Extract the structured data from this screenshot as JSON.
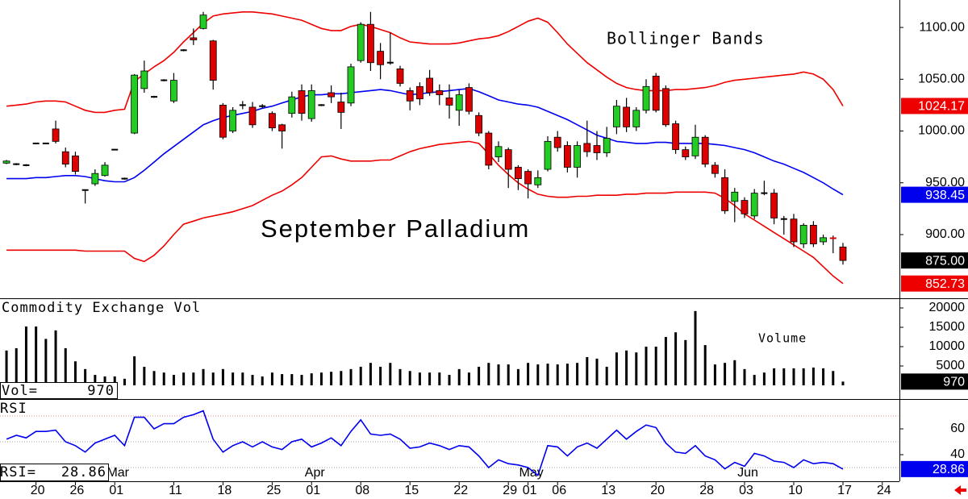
{
  "chart_data": [
    {
      "type": "candlestick",
      "title": "September Palladium",
      "annotation": "Bollinger Bands",
      "xlim": [
        -0.66,
        90.74
      ],
      "ylim": [
        838.5,
        1126.5
      ],
      "yticks": [
        {
          "value": 1100,
          "label": "1100.00"
        },
        {
          "value": 1050,
          "label": "1050.00"
        },
        {
          "value": 1000,
          "label": "1000.00"
        },
        {
          "value": 950,
          "label": "950.00"
        },
        {
          "value": 900,
          "label": "900.00"
        }
      ],
      "xticks": [
        {
          "value": 3,
          "label": "20"
        },
        {
          "value": 7,
          "label": "26"
        },
        {
          "value": 11,
          "label": "01"
        },
        {
          "value": 17,
          "label": "11"
        },
        {
          "value": 22,
          "label": "18"
        },
        {
          "value": 27,
          "label": "25"
        },
        {
          "value": 31,
          "label": "01"
        },
        {
          "value": 36,
          "label": "08"
        },
        {
          "value": 41,
          "label": "15"
        },
        {
          "value": 46,
          "label": "22"
        },
        {
          "value": 51,
          "label": "29"
        },
        {
          "value": 53,
          "label": "01"
        },
        {
          "value": 56,
          "label": "06"
        },
        {
          "value": 61,
          "label": "13"
        },
        {
          "value": 66,
          "label": "20"
        },
        {
          "value": 71,
          "label": "28"
        },
        {
          "value": 75,
          "label": "03"
        },
        {
          "value": 80,
          "label": "10"
        },
        {
          "value": 85,
          "label": "17"
        },
        {
          "value": 89,
          "label": "24"
        }
      ],
      "month_ticks": [
        {
          "value": 11,
          "label": "Mar"
        },
        {
          "value": 31,
          "label": "Apr"
        },
        {
          "value": 53,
          "label": "May"
        },
        {
          "value": 75,
          "label": "Jun"
        }
      ],
      "up_color": "#22cc22",
      "down_color": "#dd0000",
      "close_label": "875.00",
      "ohlc": [
        [
          969,
          972,
          968,
          971
        ],
        [
          968,
          969,
          967,
          968
        ],
        [
          967,
          968,
          966,
          967
        ],
        [
          988,
          988,
          988,
          988
        ],
        [
          988,
          988,
          988,
          988
        ],
        [
          1002,
          1010,
          988,
          990
        ],
        [
          980,
          984,
          965,
          968
        ],
        [
          976,
          980,
          958,
          961
        ],
        [
          943,
          943,
          930,
          943
        ],
        [
          949,
          963,
          947,
          959
        ],
        [
          957,
          970,
          956,
          967
        ],
        [
          982,
          982,
          982,
          982
        ],
        [
          954,
          955,
          953,
          954
        ],
        [
          998,
          1055,
          997,
          1054
        ],
        [
          1041,
          1068,
          1037,
          1058
        ],
        [
          1033,
          1034,
          1032,
          1033
        ],
        [
          1049,
          1050,
          1048,
          1049
        ],
        [
          1029,
          1056,
          1027,
          1049
        ],
        [
          1078,
          1079,
          1077,
          1078
        ],
        [
          1090,
          1099,
          1083,
          1088
        ],
        [
          1099,
          1115,
          1098,
          1112
        ],
        [
          1087,
          1088,
          1040,
          1049
        ],
        [
          1025,
          1027,
          992,
          994
        ],
        [
          1000,
          1023,
          998,
          1020
        ],
        [
          1025,
          1029,
          1021,
          1025
        ],
        [
          1023,
          1028,
          1003,
          1006
        ],
        [
          1024,
          1026,
          1022,
          1024
        ],
        [
          1017,
          1019,
          1000,
          1003
        ],
        [
          1006,
          1007,
          983,
          1000
        ],
        [
          1017,
          1038,
          1013,
          1033
        ],
        [
          1039,
          1045,
          1010,
          1017
        ],
        [
          1012,
          1045,
          1009,
          1039
        ],
        [
          1025,
          1026,
          1024,
          1025
        ],
        [
          1037,
          1044,
          1027,
          1033
        ],
        [
          1028,
          1037,
          1002,
          1018
        ],
        [
          1027,
          1065,
          1024,
          1062
        ],
        [
          1068,
          1105,
          1066,
          1103
        ],
        [
          1103,
          1115,
          1058,
          1066
        ],
        [
          1077,
          1085,
          1050,
          1064
        ],
        [
          1066,
          1095,
          1064,
          1066
        ],
        [
          1060,
          1063,
          1043,
          1046
        ],
        [
          1039,
          1042,
          1020,
          1029
        ],
        [
          1043,
          1047,
          1025,
          1031
        ],
        [
          1051,
          1059,
          1034,
          1037
        ],
        [
          1039,
          1045,
          1025,
          1035
        ],
        [
          1032,
          1045,
          1012,
          1025
        ],
        [
          1020,
          1040,
          1005,
          1035
        ],
        [
          1042,
          1046,
          1016,
          1019
        ],
        [
          1015,
          1018,
          995,
          998
        ],
        [
          998,
          1000,
          963,
          967
        ],
        [
          975,
          990,
          970,
          985
        ],
        [
          982,
          984,
          945,
          963
        ],
        [
          965,
          967,
          943,
          954
        ],
        [
          961,
          963,
          935,
          949
        ],
        [
          948,
          962,
          945,
          955
        ],
        [
          963,
          995,
          961,
          990
        ],
        [
          994,
          1000,
          980,
          984
        ],
        [
          986,
          990,
          960,
          965
        ],
        [
          965,
          990,
          955,
          986
        ],
        [
          988,
          1010,
          975,
          980
        ],
        [
          986,
          1000,
          972,
          979
        ],
        [
          979,
          1004,
          975,
          993
        ],
        [
          1004,
          1030,
          997,
          1024
        ],
        [
          1023,
          1032,
          999,
          1004
        ],
        [
          1004,
          1023,
          1000,
          1020
        ],
        [
          1020,
          1050,
          1017,
          1043
        ],
        [
          1053,
          1056,
          1018,
          1020
        ],
        [
          1041,
          1044,
          1004,
          1006
        ],
        [
          1007,
          1010,
          978,
          982
        ],
        [
          982,
          985,
          972,
          975
        ],
        [
          976,
          1006,
          973,
          994
        ],
        [
          994,
          996,
          965,
          968
        ],
        [
          967,
          970,
          955,
          959
        ],
        [
          955,
          963,
          920,
          923
        ],
        [
          932,
          945,
          912,
          941
        ],
        [
          933,
          936,
          916,
          920
        ],
        [
          918,
          944,
          915,
          940
        ],
        [
          940,
          952,
          938,
          940
        ],
        [
          940,
          944,
          910,
          916
        ],
        [
          915,
          918,
          900,
          915
        ],
        [
          915,
          920,
          888,
          893
        ],
        [
          891,
          911,
          887,
          909
        ],
        [
          909,
          913,
          888,
          891
        ],
        [
          893,
          900,
          890,
          897
        ],
        [
          897,
          899,
          882,
          896
        ],
        [
          888,
          892,
          871,
          875
        ]
      ],
      "bands": [
        {
          "color": "#ee0000",
          "values": [
            1024,
            1025,
            1026,
            1028,
            1029,
            1029,
            1028,
            1024,
            1020,
            1018,
            1018,
            1020,
            1021,
            1048,
            1055,
            1062,
            1068,
            1076,
            1086,
            1095,
            1104,
            1111,
            1113,
            1114,
            1115,
            1115,
            1114,
            1113,
            1111,
            1109,
            1107,
            1103,
            1099,
            1097,
            1097,
            1101,
            1103,
            1101,
            1098,
            1095,
            1090,
            1086,
            1085,
            1084,
            1084,
            1084,
            1085,
            1087,
            1089,
            1090,
            1092,
            1096,
            1101,
            1106,
            1109,
            1105,
            1095,
            1084,
            1075,
            1066,
            1059,
            1052,
            1046,
            1042,
            1040,
            1039,
            1039,
            1039,
            1040,
            1040,
            1041,
            1042,
            1044,
            1047,
            1049,
            1050,
            1051,
            1052,
            1053,
            1054,
            1055,
            1057,
            1055,
            1050,
            1040,
            1024.17
          ]
        },
        {
          "color": "#0000ee",
          "values": [
            954,
            954,
            954,
            955,
            955,
            956,
            957,
            957,
            956,
            954,
            952,
            951,
            951,
            955,
            962,
            970,
            978,
            985,
            992,
            999,
            1006,
            1010,
            1013,
            1015,
            1017,
            1019,
            1022,
            1024,
            1027,
            1030,
            1033,
            1035,
            1035,
            1036,
            1036,
            1037,
            1038,
            1039,
            1040,
            1039,
            1037,
            1035,
            1036,
            1037,
            1038,
            1039,
            1040,
            1041,
            1038,
            1034,
            1030,
            1028,
            1026,
            1025,
            1023,
            1019,
            1015,
            1011,
            1006,
            1001,
            996,
            993,
            990,
            989,
            988,
            988,
            989,
            989,
            988,
            988,
            988,
            988,
            987,
            986,
            984,
            982,
            979,
            975,
            971,
            968,
            964,
            960,
            955,
            950,
            944,
            938.45
          ]
        },
        {
          "color": "#ee0000",
          "values": [
            885,
            885,
            885,
            885,
            885,
            885,
            885,
            885,
            884,
            884,
            884,
            884,
            884,
            877,
            874,
            880,
            889,
            900,
            910,
            913,
            916,
            918,
            920,
            922,
            925,
            928,
            933,
            938,
            942,
            948,
            955,
            965,
            975,
            976,
            973,
            971,
            971,
            971,
            972,
            972,
            976,
            980,
            983,
            985,
            987,
            988,
            989,
            990,
            988,
            978,
            967,
            958,
            950,
            944,
            939,
            937,
            936,
            936,
            937,
            937,
            938,
            938,
            938,
            939,
            939,
            940,
            940,
            940,
            941,
            941,
            941,
            941,
            940,
            935,
            928,
            920,
            914,
            908,
            902,
            896,
            890,
            884,
            878,
            869,
            860,
            852.73
          ]
        }
      ]
    },
    {
      "type": "bar",
      "title": "Commodity Exchange Vol",
      "annotation": "Volume",
      "value_prefix": "Vol=",
      "color": "#000000",
      "ylim": [
        -3333,
        22083
      ],
      "yticks": [
        20000,
        15000,
        10000,
        5000
      ],
      "values": [
        9000,
        9600,
        15200,
        15200,
        12000,
        14200,
        9600,
        6200,
        4200,
        2700,
        2300,
        2300,
        1700,
        7500,
        4800,
        3700,
        3300,
        2700,
        3300,
        3300,
        4200,
        3300,
        4200,
        3300,
        3300,
        2700,
        2300,
        3300,
        2900,
        2900,
        2700,
        3100,
        3300,
        3500,
        3700,
        4200,
        4800,
        5800,
        4800,
        5800,
        4200,
        3700,
        3300,
        3300,
        3300,
        2700,
        4200,
        3300,
        4800,
        5800,
        5400,
        5400,
        4200,
        5800,
        5400,
        5600,
        5400,
        5600,
        5800,
        7300,
        6900,
        4800,
        8500,
        9000,
        8500,
        10000,
        10000,
        12500,
        13700,
        11700,
        19200,
        10400,
        5400,
        5800,
        6500,
        4200,
        2700,
        3300,
        4400,
        4400,
        4400,
        4400,
        4600,
        4400,
        3700,
        970
      ]
    },
    {
      "type": "line",
      "title": "RSI",
      "value_prefix": "RSI=",
      "color": "#0000ee",
      "ylim": [
        19.4,
        82.5
      ],
      "yticks": [
        60,
        40
      ],
      "guides": [
        70,
        50,
        30
      ],
      "values": [
        52,
        55,
        53,
        58,
        58,
        59,
        50,
        47,
        42,
        49,
        52,
        55,
        47,
        69,
        69,
        60,
        64,
        64,
        69,
        71,
        74,
        52,
        42,
        47,
        50,
        46,
        50,
        46,
        44,
        50,
        52,
        46,
        49,
        53,
        47,
        58,
        67,
        56,
        55,
        56,
        52,
        45,
        46,
        49,
        47,
        44,
        47,
        46,
        39,
        30,
        36,
        33,
        32,
        30,
        24,
        47,
        46,
        39,
        46,
        49,
        45,
        52,
        59,
        52,
        58,
        63,
        61,
        49,
        42,
        41,
        47,
        39,
        36,
        29,
        34,
        31,
        41,
        39,
        35,
        34,
        30,
        36,
        33,
        34,
        33,
        28.86
      ]
    }
  ]
}
